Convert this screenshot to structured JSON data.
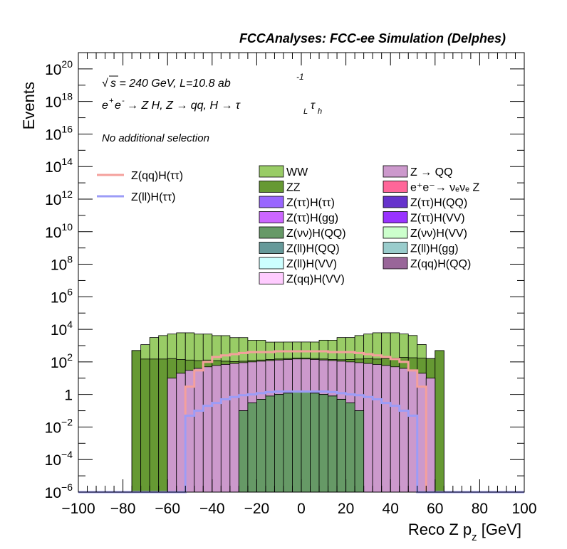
{
  "title": "FCCAnalyses: FCC-ee Simulation (Delphes)",
  "texts": {
    "energy_sqrt": "√",
    "energy_s": "s = 240 GeV, L=10.8 ab",
    "energy_exp": "-1",
    "process_a": "e",
    "process_plus": "+",
    "process_e2": "e",
    "process_minus": "-",
    "process_rest": " → Z H, Z  → qq, H  → τ",
    "process_L": "L",
    "process_tau2": "τ",
    "process_h": "h",
    "selection": "No additional selection"
  },
  "axes": {
    "xlabel_main": "Reco Z p",
    "xlabel_sub": "z",
    "xlabel_unit": " [GeV]",
    "ylabel": "Events",
    "x_ticks": [
      "−100",
      "−80",
      "−60",
      "−40",
      "−20",
      "0",
      "20",
      "40",
      "60",
      "80",
      "100"
    ],
    "y_ticks": [
      {
        "base": "10",
        "exp": "−6"
      },
      {
        "base": "10",
        "exp": "−4"
      },
      {
        "base": "10",
        "exp": "−2"
      },
      {
        "base": "1",
        "exp": ""
      },
      {
        "base": "10",
        "exp": "2"
      },
      {
        "base": "10",
        "exp": "4"
      },
      {
        "base": "10",
        "exp": "6"
      },
      {
        "base": "10",
        "exp": "8"
      },
      {
        "base": "10",
        "exp": "10"
      },
      {
        "base": "10",
        "exp": "12"
      },
      {
        "base": "10",
        "exp": "14"
      },
      {
        "base": "10",
        "exp": "16"
      },
      {
        "base": "10",
        "exp": "18"
      },
      {
        "base": "10",
        "exp": "20"
      }
    ]
  },
  "legend_lines": [
    {
      "label": "Z(qq)H(ττ)",
      "color": "#f4a09c"
    },
    {
      "label": "Z(ll)H(ττ)",
      "color": "#9c9cf7"
    }
  ],
  "legend_fills": [
    {
      "label": "WW",
      "color": "#99cc66"
    },
    {
      "label": "Z → QQ",
      "color": "#cc99cc"
    },
    {
      "label": "ZZ",
      "color": "#669933"
    },
    {
      "label": "e⁺e⁻→ νₑνₑ Z",
      "color": "#ff6699"
    },
    {
      "label": "Z(ττ)H(ττ)",
      "color": "#9966ff"
    },
    {
      "label": "Z(ττ)H(QQ)",
      "color": "#6633cc"
    },
    {
      "label": "Z(ττ)H(gg)",
      "color": "#cc66ff"
    },
    {
      "label": "Z(ττ)H(VV)",
      "color": "#9933ff"
    },
    {
      "label": "Z(νν)H(QQ)",
      "color": "#669966"
    },
    {
      "label": "Z(νν)H(VV)",
      "color": "#ccffcc"
    },
    {
      "label": "Z(ll)H(QQ)",
      "color": "#669999"
    },
    {
      "label": "Z(ll)H(gg)",
      "color": "#99cccc"
    },
    {
      "label": "Z(ll)H(VV)",
      "color": "#ccffff"
    },
    {
      "label": "Z(qq)H(QQ)",
      "color": "#996699"
    },
    {
      "label": "Z(qq)H(VV)",
      "color": "#ffccff"
    }
  ],
  "chart_data": {
    "type": "histogram",
    "title": "FCCAnalyses: FCC-ee Simulation (Delphes)",
    "xlabel": "Reco Z p_z [GeV]",
    "ylabel": "Events",
    "xlim": [
      -100,
      100
    ],
    "ylim": [
      1e-06,
      1e+21
    ],
    "log_y": true,
    "bin_width": 4,
    "stack_order_bottom_to_top": [
      "Z(ll)H(gg)",
      "Z(ll)H(VV)",
      "Z(ττ)H(VV)",
      "Z(ττ)H(gg)",
      "Z(ττ)H(ττ)",
      "Z(ττ)H(QQ)",
      "Z(ll)H(QQ)",
      "Z(νν)H(QQ)",
      "Z(qq)H(QQ)",
      "Z(qq)H(VV)",
      "e⁺e⁻→ νₑνₑ Z",
      "Z → QQ",
      "ZZ",
      "WW"
    ],
    "stacked_series": [
      {
        "name": "WW",
        "color": "#99cc66",
        "values": [
          0,
          0,
          0,
          0,
          0,
          0,
          5,
          1000,
          3000,
          4000,
          5000,
          6000,
          6000,
          5000,
          5000,
          4000,
          4000,
          3000,
          3000,
          2000,
          2000,
          1500,
          1500,
          1500,
          1500,
          1500,
          1500,
          2000,
          2000,
          3000,
          3000,
          4000,
          5000,
          6000,
          6000,
          6000,
          5000,
          4000,
          1000,
          0,
          0,
          0,
          0,
          0,
          0,
          0,
          0,
          0,
          0,
          0
        ]
      },
      {
        "name": "ZZ",
        "color": "#669933",
        "values": [
          0,
          0,
          0,
          0,
          0,
          0,
          500,
          150,
          150,
          150,
          150,
          120,
          100,
          80,
          80,
          60,
          40,
          25,
          20,
          20,
          20,
          20,
          20,
          20,
          20,
          20,
          20,
          20,
          20,
          25,
          40,
          60,
          80,
          80,
          100,
          120,
          150,
          150,
          150,
          150,
          500,
          0,
          0,
          0,
          0,
          0,
          0,
          0,
          0,
          0
        ]
      },
      {
        "name": "Z → QQ",
        "color": "#cc99cc",
        "values": [
          0,
          0,
          0,
          0,
          0,
          0,
          0,
          0,
          0,
          0,
          10,
          20,
          30,
          40,
          50,
          60,
          70,
          80,
          90,
          100,
          110,
          120,
          130,
          140,
          150,
          150,
          140,
          130,
          120,
          110,
          100,
          90,
          80,
          70,
          60,
          50,
          40,
          30,
          20,
          10,
          0,
          0,
          0,
          0,
          0,
          0,
          0,
          0,
          0,
          0
        ]
      },
      {
        "name": "e⁺e⁻→ νₑνₑ Z",
        "color": "#ff6699",
        "values": [
          0,
          0,
          0,
          0,
          0,
          0,
          0,
          0,
          0,
          0,
          0,
          0,
          0,
          0,
          0,
          0,
          0,
          0,
          0,
          0,
          0,
          0,
          0.01,
          0.01,
          0.01,
          0.01,
          0.01,
          0.01,
          0.01,
          0.01,
          0,
          0,
          0,
          0,
          0,
          0,
          0,
          0,
          0,
          0,
          0,
          0,
          0,
          0,
          0,
          0,
          0,
          0,
          0,
          0
        ]
      },
      {
        "name": "Z(νν)H(QQ)",
        "color": "#669966",
        "values": [
          0,
          0,
          0,
          0,
          0,
          0,
          0,
          0,
          0,
          0,
          0,
          0,
          0,
          0,
          0,
          0,
          0,
          0,
          0.1,
          0.3,
          0.5,
          0.8,
          1,
          1.2,
          1.4,
          1.4,
          1.2,
          1,
          0.8,
          0.5,
          0.3,
          0.1,
          0,
          0,
          0,
          0,
          0,
          0,
          0,
          0,
          0,
          0,
          0,
          0,
          0,
          0,
          0,
          0,
          0,
          0
        ]
      }
    ],
    "line_series": [
      {
        "name": "Z(qq)H(ττ)",
        "color": "#f4a09c",
        "values": [
          0,
          0,
          0,
          0,
          0,
          0,
          0,
          0,
          0,
          0,
          0,
          0,
          3,
          30,
          100,
          200,
          250,
          300,
          350,
          400,
          400,
          400,
          450,
          450,
          450,
          450,
          450,
          450,
          400,
          400,
          400,
          350,
          300,
          250,
          200,
          150,
          100,
          30,
          3,
          0,
          0,
          0,
          0,
          0,
          0,
          0,
          0,
          0,
          0,
          0
        ]
      },
      {
        "name": "Z(ll)H(ττ)",
        "color": "#9c9cf7",
        "values": [
          0,
          0,
          0,
          0,
          0,
          0,
          0,
          0,
          0,
          0,
          0,
          0,
          0.05,
          0.1,
          0.2,
          0.3,
          0.5,
          0.7,
          0.9,
          1,
          1.2,
          1.4,
          1.5,
          1.5,
          1.5,
          1.5,
          1.5,
          1.5,
          1.4,
          1.2,
          1,
          0.9,
          0.7,
          0.5,
          0.3,
          0.2,
          0.1,
          0.05,
          0,
          0,
          0,
          0,
          0,
          0,
          0,
          0,
          0,
          0,
          0,
          0
        ]
      }
    ]
  }
}
